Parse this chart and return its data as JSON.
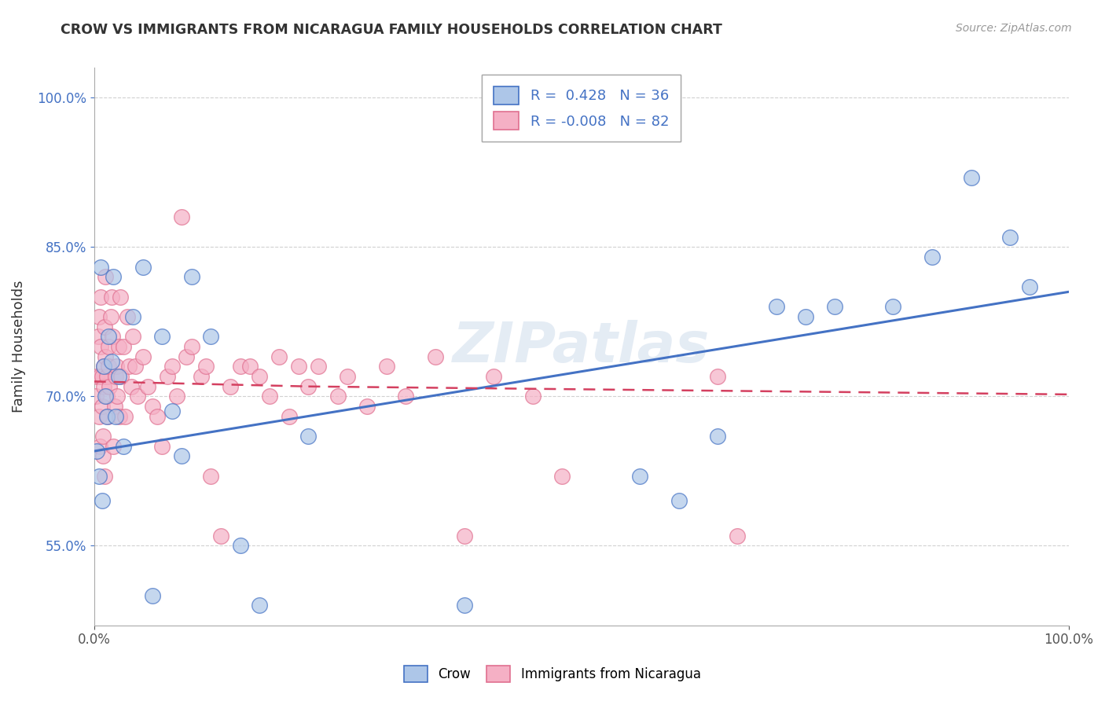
{
  "title": "CROW VS IMMIGRANTS FROM NICARAGUA FAMILY HOUSEHOLDS CORRELATION CHART",
  "source": "Source: ZipAtlas.com",
  "ylabel": "Family Households",
  "watermark": "ZIPatlas",
  "legend_label_crow": "Crow",
  "legend_label_nicaragua": "Immigrants from Nicaragua",
  "crow_color": "#adc6e8",
  "nicaragua_color": "#f5b0c5",
  "crow_edge_color": "#4472c4",
  "nicaragua_edge_color": "#e07090",
  "crow_line_color": "#4472c4",
  "nicaragua_line_color": "#d44060",
  "crow_R": "0.428",
  "crow_N": "36",
  "nicaragua_R": "-0.008",
  "nicaragua_N": "82",
  "xlim": [
    0.0,
    1.0
  ],
  "ylim": [
    0.47,
    1.03
  ],
  "yticks": [
    0.55,
    0.7,
    0.85,
    1.0
  ],
  "ytick_labels": [
    "55.0%",
    "70.0%",
    "85.0%",
    "100.0%"
  ],
  "xtick_labels": [
    "0.0%",
    "100.0%"
  ],
  "crow_x": [
    0.003,
    0.005,
    0.007,
    0.008,
    0.01,
    0.012,
    0.013,
    0.015,
    0.018,
    0.02,
    0.022,
    0.025,
    0.03,
    0.04,
    0.05,
    0.06,
    0.07,
    0.08,
    0.09,
    0.1,
    0.12,
    0.15,
    0.17,
    0.22,
    0.38,
    0.56,
    0.6,
    0.64,
    0.7,
    0.73,
    0.76,
    0.82,
    0.86,
    0.9,
    0.94,
    0.96
  ],
  "crow_y": [
    0.645,
    0.62,
    0.83,
    0.595,
    0.73,
    0.7,
    0.68,
    0.76,
    0.735,
    0.82,
    0.68,
    0.72,
    0.65,
    0.78,
    0.83,
    0.5,
    0.76,
    0.685,
    0.64,
    0.82,
    0.76,
    0.55,
    0.49,
    0.66,
    0.49,
    0.62,
    0.595,
    0.66,
    0.79,
    0.78,
    0.79,
    0.79,
    0.84,
    0.92,
    0.86,
    0.81
  ],
  "nicaragua_x": [
    0.002,
    0.003,
    0.004,
    0.005,
    0.005,
    0.006,
    0.006,
    0.007,
    0.007,
    0.008,
    0.008,
    0.009,
    0.009,
    0.01,
    0.01,
    0.011,
    0.011,
    0.012,
    0.012,
    0.013,
    0.013,
    0.014,
    0.015,
    0.015,
    0.016,
    0.017,
    0.018,
    0.019,
    0.02,
    0.021,
    0.022,
    0.023,
    0.024,
    0.025,
    0.026,
    0.027,
    0.028,
    0.03,
    0.032,
    0.034,
    0.036,
    0.038,
    0.04,
    0.042,
    0.045,
    0.05,
    0.055,
    0.06,
    0.065,
    0.07,
    0.075,
    0.08,
    0.085,
    0.09,
    0.095,
    0.1,
    0.11,
    0.115,
    0.12,
    0.13,
    0.14,
    0.15,
    0.16,
    0.17,
    0.18,
    0.19,
    0.2,
    0.21,
    0.22,
    0.23,
    0.25,
    0.26,
    0.28,
    0.3,
    0.32,
    0.35,
    0.38,
    0.41,
    0.45,
    0.48,
    0.64,
    0.66
  ],
  "nicaragua_y": [
    0.7,
    0.72,
    0.76,
    0.78,
    0.68,
    0.65,
    0.72,
    0.8,
    0.75,
    0.72,
    0.69,
    0.66,
    0.64,
    0.73,
    0.71,
    0.77,
    0.62,
    0.82,
    0.74,
    0.72,
    0.7,
    0.68,
    0.75,
    0.73,
    0.71,
    0.78,
    0.8,
    0.76,
    0.65,
    0.69,
    0.72,
    0.73,
    0.7,
    0.75,
    0.68,
    0.8,
    0.72,
    0.75,
    0.68,
    0.78,
    0.73,
    0.71,
    0.76,
    0.73,
    0.7,
    0.74,
    0.71,
    0.69,
    0.68,
    0.65,
    0.72,
    0.73,
    0.7,
    0.88,
    0.74,
    0.75,
    0.72,
    0.73,
    0.62,
    0.56,
    0.71,
    0.73,
    0.73,
    0.72,
    0.7,
    0.74,
    0.68,
    0.73,
    0.71,
    0.73,
    0.7,
    0.72,
    0.69,
    0.73,
    0.7,
    0.74,
    0.56,
    0.72,
    0.7,
    0.62,
    0.72,
    0.56
  ]
}
